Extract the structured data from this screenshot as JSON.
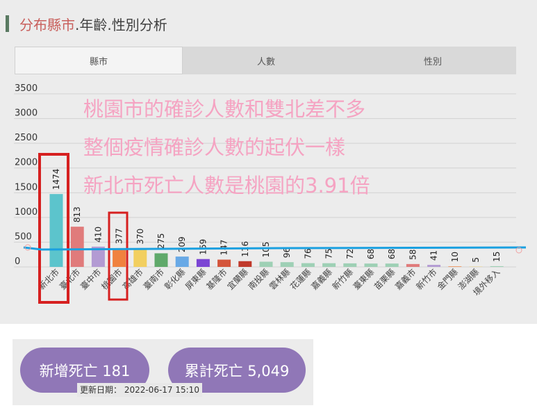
{
  "header": {
    "title_highlight": "分布縣市",
    "title_rest": ".年齡.性別分析"
  },
  "tabs": [
    {
      "label": "縣市",
      "active": true
    },
    {
      "label": "人數",
      "active": false
    },
    {
      "label": "性別",
      "active": false
    }
  ],
  "chart_data": {
    "type": "bar",
    "categories": [
      "新北市",
      "臺北市",
      "臺中市",
      "桃園市",
      "高雄市",
      "臺南市",
      "彰化縣",
      "屏東縣",
      "基隆市",
      "宜蘭縣",
      "南投縣",
      "雲林縣",
      "花蓮縣",
      "嘉義縣",
      "新竹縣",
      "臺東縣",
      "苗栗縣",
      "嘉義市",
      "新竹市",
      "金門縣",
      "澎湖縣",
      "境外移入"
    ],
    "values": [
      1474,
      813,
      410,
      377,
      370,
      275,
      209,
      159,
      147,
      116,
      105,
      96,
      76,
      75,
      72,
      68,
      68,
      58,
      41,
      10,
      5,
      15
    ],
    "colors": [
      "#5cc4cc",
      "#e07b7b",
      "#b39bd3",
      "#f0823f",
      "#f2cf5f",
      "#5fa96a",
      "#68a9e6",
      "#7b45d4",
      "#d4553b",
      "#c0392b",
      "#9ed0b5",
      "#9ed0b5",
      "#9ed0b5",
      "#9ed0b5",
      "#9ed0b5",
      "#9ed0b5",
      "#9ed0b5",
      "#e07b7b",
      "#b39bd3",
      "#f0823f",
      "#f2cf5f",
      "#9ed0b5"
    ],
    "yticks": [
      0,
      500,
      1000,
      1500,
      2000,
      2500,
      3000,
      3500
    ],
    "ylim": [
      0,
      3500
    ],
    "grid": true,
    "annotations": [
      "桃園市的確診人數和雙北差不多",
      "整個疫情確診人數的起伏一樣",
      "新北市死亡人數是桃園的3.91倍"
    ],
    "annotation_color": "#f5a3c2",
    "highlight_color": "#d62020",
    "line_color": "#1aa0e0"
  },
  "stats": {
    "new_deaths": "新增死亡 181",
    "total_deaths": "累計死亡 5,049",
    "updated": "更新日期： 2022-06-17  15:10"
  }
}
